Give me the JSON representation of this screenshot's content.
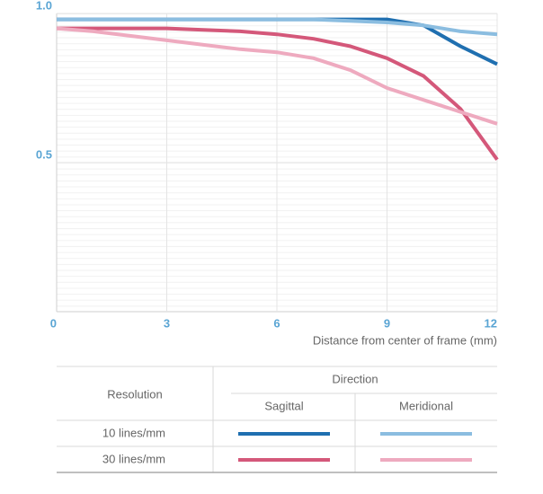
{
  "chart_data": {
    "type": "line",
    "x_label": "Distance from center of frame (mm)",
    "x": [
      0,
      1,
      2,
      3,
      4,
      5,
      6,
      7,
      8,
      9,
      10,
      11,
      12
    ],
    "xlim": [
      0,
      12
    ],
    "xticks": [
      0,
      3,
      6,
      9,
      12
    ],
    "ylim": [
      0,
      1
    ],
    "yticks": [
      {
        "value": 0.5,
        "label": "0.5"
      },
      {
        "value": 1,
        "label": "1.0"
      }
    ],
    "grid": true,
    "legend": {
      "row_header": "Resolution",
      "column_header": "Direction",
      "directions": [
        "Sagittal",
        "Meridional"
      ],
      "resolutions": [
        "10 lines/mm",
        "30 lines/mm"
      ]
    },
    "series": [
      {
        "color": "#1f6fb0",
        "values": [
          0.98,
          0.98,
          0.98,
          0.98,
          0.98,
          0.98,
          0.98,
          0.98,
          0.98,
          0.98,
          0.96,
          0.89,
          0.83
        ]
      },
      {
        "color": "#8bbde0",
        "values": [
          0.98,
          0.98,
          0.98,
          0.98,
          0.98,
          0.98,
          0.98,
          0.98,
          0.975,
          0.97,
          0.96,
          0.94,
          0.93
        ]
      },
      {
        "color": "#d4587a",
        "values": [
          0.95,
          0.95,
          0.95,
          0.95,
          0.945,
          0.94,
          0.93,
          0.915,
          0.89,
          0.85,
          0.79,
          0.68,
          0.51
        ]
      },
      {
        "color": "#eeaabf",
        "values": [
          0.95,
          0.94,
          0.925,
          0.91,
          0.895,
          0.88,
          0.87,
          0.85,
          0.81,
          0.75,
          0.71,
          0.67,
          0.63
        ]
      }
    ]
  }
}
